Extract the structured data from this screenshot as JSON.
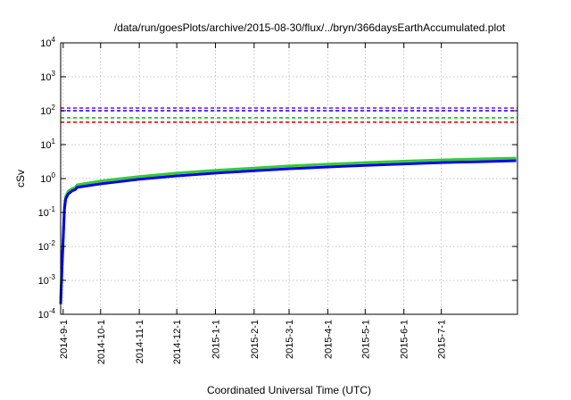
{
  "chart_data": {
    "type": "line",
    "title": "/data/run/goesPlots/archive/2015-08-30/flux/../bryn/366daysEarthAccumulated.plot",
    "xlabel": "Coordinated Universal Time (UTC)",
    "ylabel": "cSv",
    "y_scale": "log",
    "ylim": [
      0.0001,
      10000
    ],
    "xlim": [
      "2014-08-30",
      "2015-08-31"
    ],
    "grid": true,
    "x_ticks": [
      "2014-9-1",
      "2014-10-1",
      "2014-11-1",
      "2014-12-1",
      "2015-1-1",
      "2015-2-1",
      "2015-3-1",
      "2015-4-1",
      "2015-5-1",
      "2015-6-1",
      "2015-7-1"
    ],
    "y_ticks": [
      {
        "value": 0.0001,
        "base": "10",
        "exp": "-4"
      },
      {
        "value": 0.001,
        "base": "10",
        "exp": "-3"
      },
      {
        "value": 0.01,
        "base": "10",
        "exp": "-2"
      },
      {
        "value": 0.1,
        "base": "10",
        "exp": "-1"
      },
      {
        "value": 1,
        "base": "10",
        "exp": "0"
      },
      {
        "value": 10,
        "base": "10",
        "exp": "1"
      },
      {
        "value": 100,
        "base": "10",
        "exp": "2"
      },
      {
        "value": 1000,
        "base": "10",
        "exp": "3"
      },
      {
        "value": 10000,
        "base": "10",
        "exp": "4"
      }
    ],
    "reference_lines": [
      {
        "value": 120,
        "color": "#9400d3"
      },
      {
        "value": 100,
        "color": "#0000ff"
      },
      {
        "value": 62,
        "color": "#00cc00"
      },
      {
        "value": 46,
        "color": "#ff0000"
      }
    ],
    "series": [
      {
        "color": "#33cc33",
        "points": [
          [
            "2014-08-30",
            0.0003
          ],
          [
            "2014-08-31",
            0.003
          ],
          [
            "2014-09-01",
            0.02
          ],
          [
            "2014-09-02",
            0.15
          ],
          [
            "2014-09-03",
            0.3
          ],
          [
            "2014-09-05",
            0.42
          ],
          [
            "2014-09-08",
            0.5
          ],
          [
            "2014-09-11",
            0.56
          ],
          [
            "2014-09-12",
            0.65
          ],
          [
            "2014-10-01",
            0.85
          ],
          [
            "2014-11-01",
            1.15
          ],
          [
            "2014-12-01",
            1.45
          ],
          [
            "2015-01-01",
            1.75
          ],
          [
            "2015-02-01",
            2.05
          ],
          [
            "2015-03-01",
            2.35
          ],
          [
            "2015-04-01",
            2.65
          ],
          [
            "2015-05-01",
            2.95
          ],
          [
            "2015-06-01",
            3.25
          ],
          [
            "2015-07-01",
            3.55
          ],
          [
            "2015-08-01",
            3.8
          ],
          [
            "2015-08-30",
            4.0
          ]
        ]
      },
      {
        "color": "#0000ee",
        "points": [
          [
            "2014-08-30",
            0.0002
          ],
          [
            "2014-08-31",
            0.002
          ],
          [
            "2014-09-01",
            0.015
          ],
          [
            "2014-09-02",
            0.12
          ],
          [
            "2014-09-03",
            0.25
          ],
          [
            "2014-09-05",
            0.35
          ],
          [
            "2014-09-08",
            0.43
          ],
          [
            "2014-09-11",
            0.48
          ],
          [
            "2014-09-12",
            0.55
          ],
          [
            "2014-10-01",
            0.7
          ],
          [
            "2014-11-01",
            0.95
          ],
          [
            "2014-12-01",
            1.2
          ],
          [
            "2015-01-01",
            1.45
          ],
          [
            "2015-02-01",
            1.7
          ],
          [
            "2015-03-01",
            1.95
          ],
          [
            "2015-04-01",
            2.2
          ],
          [
            "2015-05-01",
            2.45
          ],
          [
            "2015-06-01",
            2.7
          ],
          [
            "2015-07-01",
            2.95
          ],
          [
            "2015-08-01",
            3.15
          ],
          [
            "2015-08-30",
            3.35
          ]
        ]
      }
    ]
  }
}
